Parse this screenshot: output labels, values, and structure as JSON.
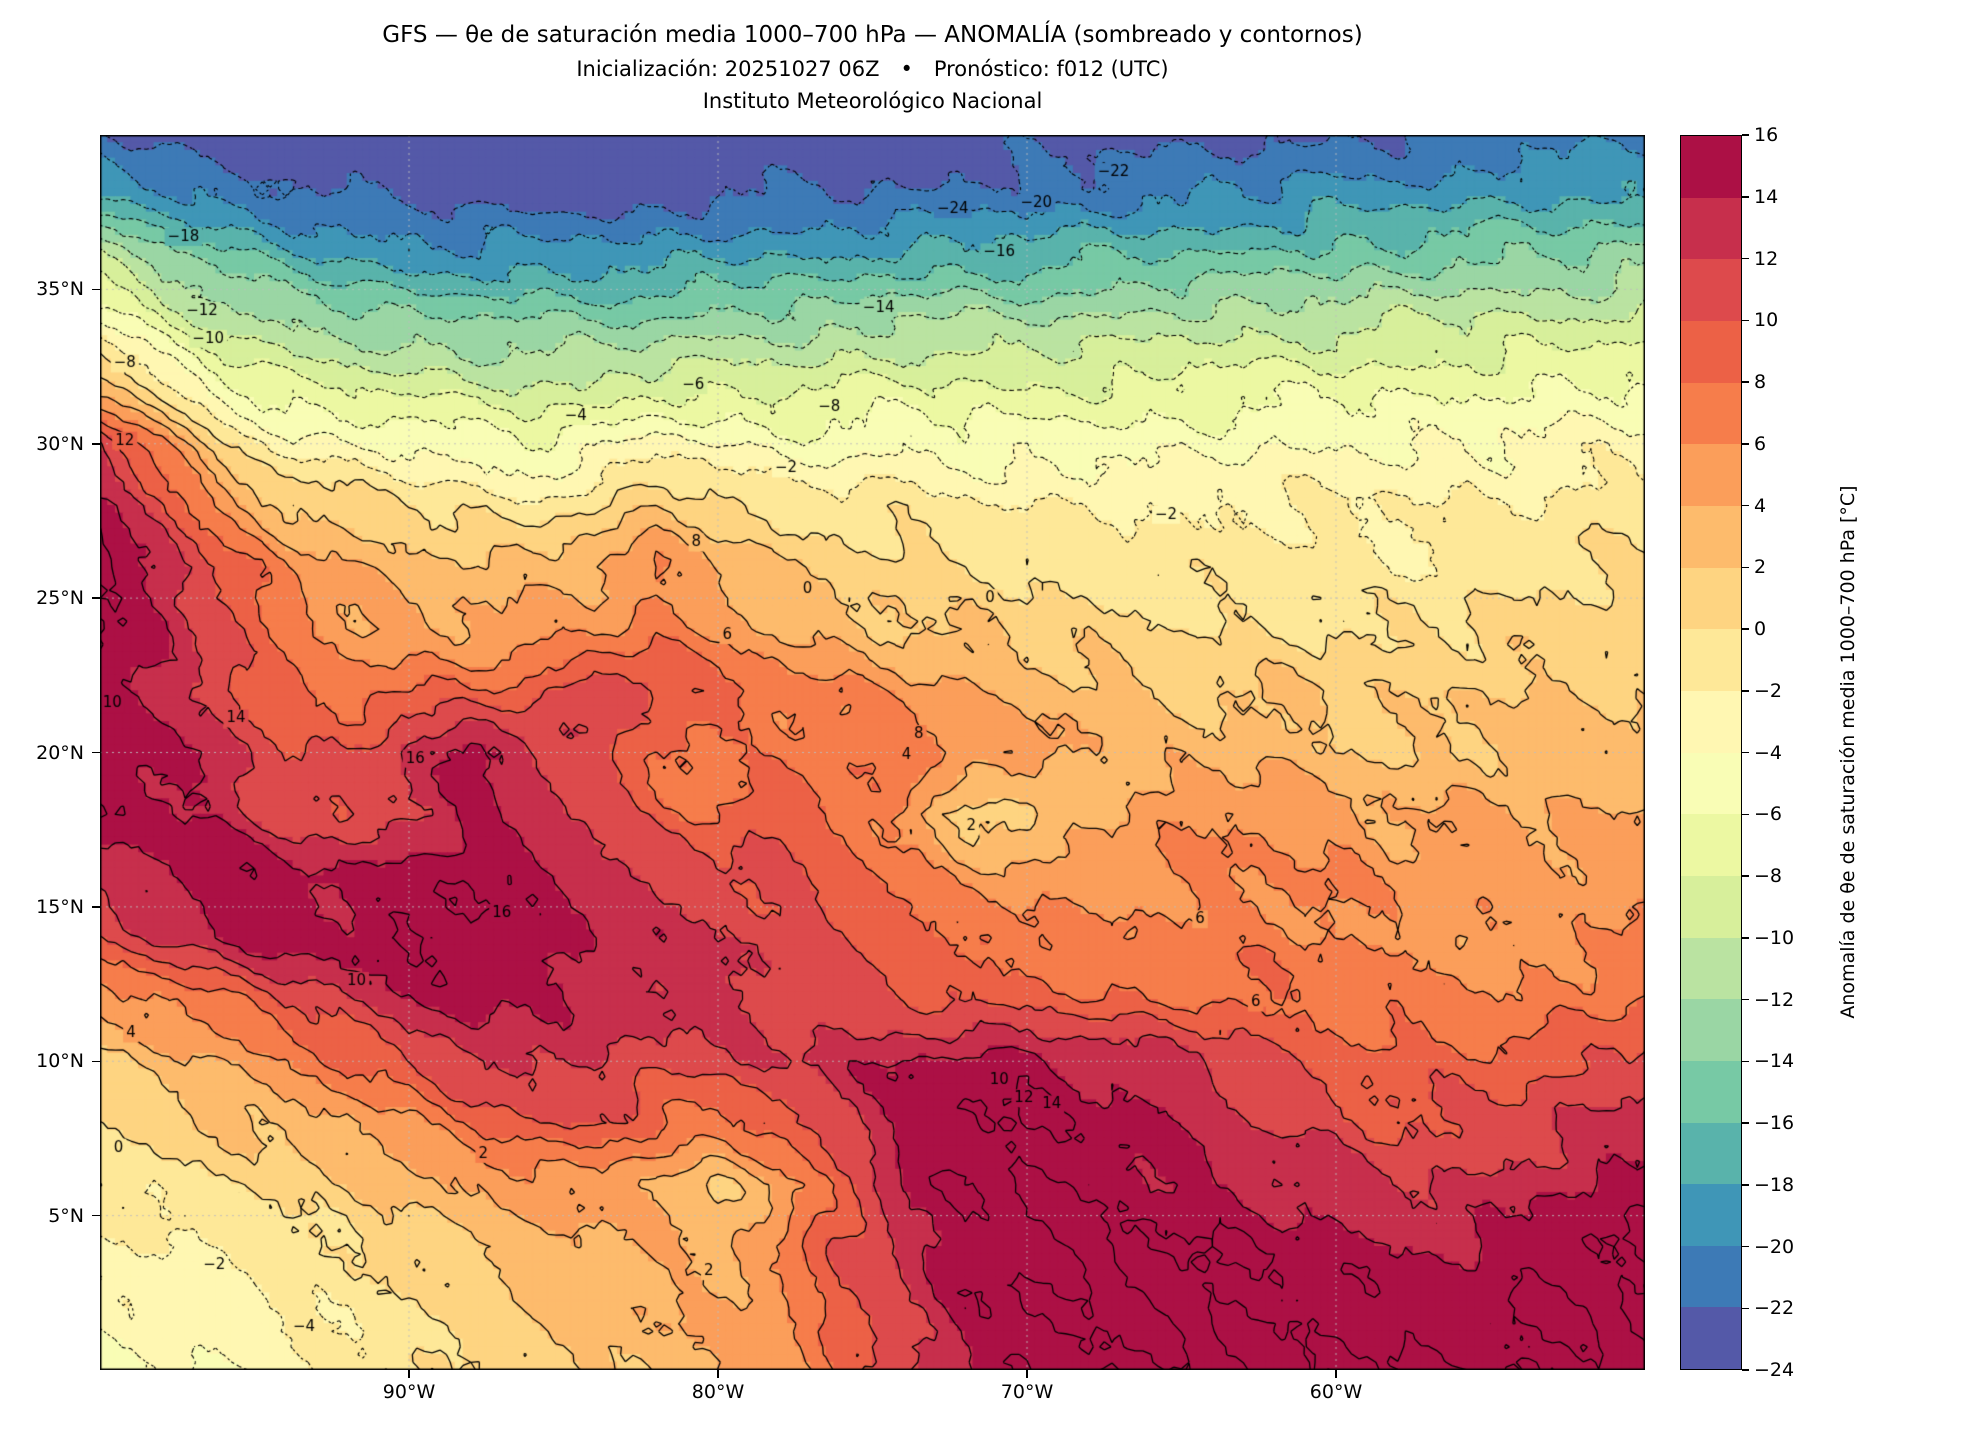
{
  "header": {
    "title": "GFS — θe de saturación media 1000–700 hPa — ANOMALÍA (sombreado y contornos)",
    "subtitle": "Inicialización: 20251027 06Z • Pronóstico: f012 (UTC)",
    "institution": "Instituto Meteorológico Nacional"
  },
  "axes": {
    "lat_ticks": [
      {
        "label": "35°N",
        "value": 35
      },
      {
        "label": "30°N",
        "value": 30
      },
      {
        "label": "25°N",
        "value": 25
      },
      {
        "label": "20°N",
        "value": 20
      },
      {
        "label": "15°N",
        "value": 15
      },
      {
        "label": "10°N",
        "value": 10
      },
      {
        "label": "5°N",
        "value": 5
      }
    ],
    "lon_ticks": [
      {
        "label": "90°W",
        "value": -90
      },
      {
        "label": "80°W",
        "value": -80
      },
      {
        "label": "70°W",
        "value": -70
      },
      {
        "label": "60°W",
        "value": -60
      }
    ]
  },
  "colorbar": {
    "label": "Anomalía de θe de saturación media 1000–700 hPa [°C]",
    "min": -24,
    "max": 16,
    "step": 2,
    "tick_labels": [
      "16",
      "14",
      "12",
      "10",
      "8",
      "6",
      "4",
      "2",
      "0",
      "−2",
      "−4",
      "−6",
      "−8",
      "−10",
      "−12",
      "−14",
      "−16",
      "−18",
      "−20",
      "−22",
      "−24"
    ],
    "colors": [
      "#5459a8",
      "#3d7ab6",
      "#3f96b7",
      "#59b3ab",
      "#77c9a5",
      "#9ad6a4",
      "#bae3a1",
      "#d7ef9b",
      "#ecf8a2",
      "#f9fdb5",
      "#fff7b2",
      "#fee898",
      "#fed481",
      "#fdbb6c",
      "#fb9e5a",
      "#f67d4b",
      "#ec6146",
      "#dd4a4c",
      "#c72f4c",
      "#ac1045"
    ]
  },
  "chart_data": {
    "type": "heatmap",
    "title": "GFS — θe de saturación media 1000–700 hPa — ANOMALÍA (sombreado y contornos)",
    "xlabel": "",
    "ylabel": "",
    "units": "°C",
    "lon_min": -100,
    "lon_max": -50,
    "lat_min": 0,
    "lat_max": 40,
    "grid_step_deg": 2,
    "lons": [
      -100,
      -98,
      -96,
      -94,
      -92,
      -90,
      -88,
      -86,
      -84,
      -82,
      -80,
      -78,
      -76,
      -74,
      -72,
      -70,
      -68,
      -66,
      -64,
      -62,
      -60,
      -58,
      -56,
      -54,
      -52,
      -50
    ],
    "lats": [
      40,
      38,
      36,
      34,
      32,
      30,
      28,
      26,
      24,
      22,
      20,
      18,
      16,
      14,
      12,
      10,
      8,
      6,
      4,
      2,
      0
    ],
    "values": [
      [
        -22,
        -23,
        -24,
        -24,
        -24,
        -24,
        -24,
        -24,
        -24,
        -24,
        -24,
        -24,
        -24,
        -24,
        -23,
        -23,
        -23,
        -23,
        -23,
        -22,
        -22,
        -22,
        -22,
        -21,
        -21,
        -21
      ],
      [
        -18,
        -19,
        -21,
        -22,
        -22,
        -23,
        -23,
        -23,
        -23,
        -23,
        -22,
        -22,
        -22,
        -22,
        -21,
        -21,
        -21,
        -20,
        -20,
        -20,
        -19,
        -19,
        -19,
        -18,
        -18,
        -18
      ],
      [
        -10,
        -13,
        -15,
        -17,
        -18,
        -19,
        -19,
        -19,
        -19,
        -19,
        -18,
        -18,
        -18,
        -17,
        -17,
        -17,
        -16,
        -16,
        -16,
        -15,
        -15,
        -15,
        -14,
        -14,
        -14,
        -13
      ],
      [
        -4,
        -8,
        -11,
        -12,
        -13,
        -14,
        -14,
        -14,
        -14,
        -14,
        -13,
        -13,
        -13,
        -12,
        -12,
        -12,
        -12,
        -11,
        -11,
        -11,
        -11,
        -10,
        -10,
        -10,
        -10,
        -9
      ],
      [
        3,
        -2,
        -6,
        -8,
        -9,
        -9,
        -10,
        -10,
        -10,
        -9,
        -9,
        -9,
        -8,
        -8,
        -8,
        -8,
        -8,
        -8,
        -7,
        -7,
        -7,
        -7,
        -7,
        -6,
        -6,
        -6
      ],
      [
        12,
        6,
        0,
        -3,
        -4,
        -4,
        -5,
        -6,
        -5,
        -3,
        -4,
        -5,
        -5,
        -4,
        -5,
        -5,
        -5,
        -5,
        -5,
        -4,
        -4,
        -4,
        -4,
        -4,
        -3,
        -3
      ],
      [
        15,
        11,
        5,
        2,
        1,
        0,
        -1,
        -2,
        0,
        2,
        1,
        -1,
        -1,
        -1,
        -2,
        -2,
        -2,
        -2,
        -2,
        -2,
        -2,
        -2,
        -2,
        -2,
        -1,
        -1
      ],
      [
        16,
        14,
        9,
        6,
        4,
        3,
        3,
        3,
        4,
        6,
        4,
        2,
        1,
        1,
        0,
        0,
        -1,
        -1,
        -1,
        -1,
        -1,
        -2,
        -1,
        -1,
        0,
        0
      ],
      [
        16,
        14,
        11,
        7,
        5,
        4,
        4,
        5,
        5,
        7,
        5,
        4,
        3,
        2,
        2,
        1,
        1,
        0,
        0,
        0,
        0,
        0,
        0,
        1,
        1,
        1
      ],
      [
        15,
        13,
        11,
        8,
        7,
        8,
        8,
        9,
        12,
        11,
        9,
        7,
        6,
        5,
        4,
        3,
        3,
        2,
        2,
        2,
        2,
        1,
        2,
        2,
        2,
        2
      ],
      [
        16,
        14,
        13,
        10,
        10,
        13,
        15,
        13,
        10,
        8,
        7,
        7,
        7,
        8,
        6,
        5,
        4,
        3,
        3,
        3,
        2,
        2,
        2,
        3,
        3,
        3
      ],
      [
        16,
        15,
        13,
        11,
        10,
        12,
        14,
        13,
        11,
        9,
        8,
        10,
        8,
        5,
        1,
        1,
        3,
        5,
        6,
        6,
        5,
        4,
        4,
        4,
        4,
        4
      ],
      [
        12,
        14,
        16,
        15,
        14,
        15,
        16,
        15,
        13,
        12,
        11,
        10,
        9,
        7,
        5,
        5,
        5,
        6,
        6,
        6,
        6,
        5,
        5,
        5,
        5,
        5
      ],
      [
        10,
        12,
        14,
        15,
        15,
        16,
        16,
        15,
        14,
        13,
        12,
        11,
        10,
        9,
        8,
        7,
        6,
        6,
        7,
        7,
        6,
        6,
        5,
        5,
        6,
        6
      ],
      [
        5,
        6,
        8,
        10,
        12,
        14,
        15,
        14,
        13,
        13,
        13,
        12,
        11,
        10,
        9,
        9,
        8,
        8,
        8,
        8,
        7,
        7,
        6,
        6,
        7,
        8
      ],
      [
        2,
        3,
        4,
        6,
        8,
        10,
        12,
        13,
        12,
        11,
        11,
        12,
        13,
        14,
        15,
        15,
        14,
        13,
        12,
        10,
        9,
        9,
        9,
        9,
        10,
        11
      ],
      [
        0,
        1,
        2,
        3,
        4,
        6,
        8,
        10,
        10,
        8,
        7,
        9,
        12,
        14,
        16,
        16,
        15,
        14,
        13,
        12,
        11,
        10,
        10,
        11,
        12,
        13
      ],
      [
        -1,
        -1,
        0,
        1,
        2,
        3,
        4,
        5,
        5,
        4,
        2,
        4,
        9,
        14,
        16,
        16,
        16,
        15,
        14,
        14,
        13,
        12,
        12,
        13,
        14,
        15
      ],
      [
        -2,
        -2,
        -2,
        -1,
        0,
        1,
        2,
        3,
        4,
        4,
        3,
        6,
        10,
        13,
        15,
        16,
        16,
        16,
        16,
        15,
        15,
        14,
        14,
        15,
        16,
        16
      ],
      [
        -3,
        -3,
        -3,
        -2,
        -1,
        0,
        1,
        2,
        3,
        4,
        4,
        6,
        9,
        12,
        15,
        16,
        16,
        16,
        16,
        16,
        16,
        15,
        15,
        16,
        16,
        16
      ],
      [
        -4,
        -4,
        -4,
        -3,
        -2,
        -1,
        0,
        1,
        2,
        3,
        4,
        5,
        8,
        11,
        14,
        16,
        16,
        16,
        16,
        16,
        16,
        16,
        16,
        16,
        16,
        16
      ]
    ],
    "contour_interval": 2,
    "contour_style": {
      "negative": "dotted",
      "non_negative": "solid"
    },
    "contour_labels": [
      {
        "v": -24,
        "lon": -72.4,
        "lat": 37.6
      },
      {
        "v": -20,
        "lon": -69.7,
        "lat": 37.8
      },
      {
        "v": -22,
        "lon": -67.2,
        "lat": 38.8
      },
      {
        "v": -16,
        "lon": -70.9,
        "lat": 36.2
      },
      {
        "v": -18,
        "lon": -97.3,
        "lat": 36.7
      },
      {
        "v": -14,
        "lon": -74.8,
        "lat": 34.4
      },
      {
        "v": -12,
        "lon": -96.7,
        "lat": 34.3
      },
      {
        "v": -10,
        "lon": -96.5,
        "lat": 33.4
      },
      {
        "v": -8,
        "lon": -99.2,
        "lat": 32.6
      },
      {
        "v": -8,
        "lon": -76.4,
        "lat": 31.2
      },
      {
        "v": -6,
        "lon": -80.8,
        "lat": 31.9
      },
      {
        "v": -4,
        "lon": -84.6,
        "lat": 30.9
      },
      {
        "v": -2,
        "lon": -77.8,
        "lat": 29.2
      },
      {
        "v": -2,
        "lon": -65.5,
        "lat": 27.7
      },
      {
        "v": -2,
        "lon": -96.3,
        "lat": 3.4
      },
      {
        "v": -4,
        "lon": -93.4,
        "lat": 1.4
      },
      {
        "v": 0,
        "lon": -77.1,
        "lat": 25.3
      },
      {
        "v": 0,
        "lon": -71.2,
        "lat": 25.0
      },
      {
        "v": 0,
        "lon": -99.4,
        "lat": 7.2
      },
      {
        "v": 2,
        "lon": -71.8,
        "lat": 17.6
      },
      {
        "v": 2,
        "lon": -87.6,
        "lat": 7.0
      },
      {
        "v": 2,
        "lon": -80.3,
        "lat": 3.2
      },
      {
        "v": 4,
        "lon": -73.9,
        "lat": 19.9
      },
      {
        "v": 4,
        "lon": -99.0,
        "lat": 10.9
      },
      {
        "v": 6,
        "lon": -79.7,
        "lat": 23.8
      },
      {
        "v": 6,
        "lon": -64.4,
        "lat": 14.6
      },
      {
        "v": 6,
        "lon": -62.6,
        "lat": 11.9
      },
      {
        "v": 8,
        "lon": -80.7,
        "lat": 26.8
      },
      {
        "v": 8,
        "lon": -73.5,
        "lat": 20.6
      },
      {
        "v": 10,
        "lon": -99.6,
        "lat": 21.6
      },
      {
        "v": 10,
        "lon": -91.7,
        "lat": 12.6
      },
      {
        "v": 10,
        "lon": -70.9,
        "lat": 9.4
      },
      {
        "v": 12,
        "lon": -99.2,
        "lat": 30.1
      },
      {
        "v": 12,
        "lon": -70.1,
        "lat": 8.8
      },
      {
        "v": 14,
        "lon": -95.6,
        "lat": 21.1
      },
      {
        "v": 14,
        "lon": -69.2,
        "lat": 8.6
      },
      {
        "v": 16,
        "lon": -89.8,
        "lat": 19.8
      },
      {
        "v": 16,
        "lon": -87.0,
        "lat": 14.8
      }
    ]
  }
}
